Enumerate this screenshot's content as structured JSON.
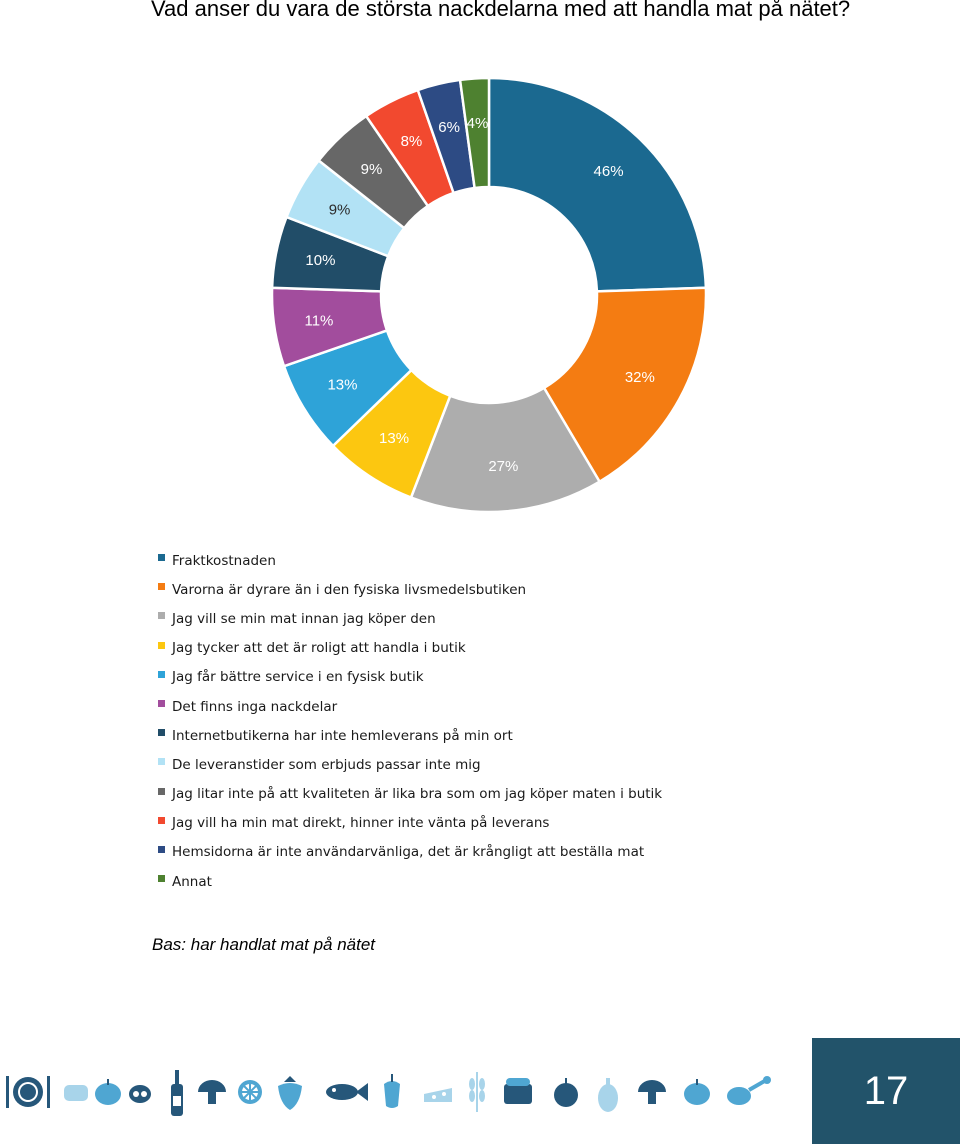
{
  "page": {
    "title": "Vad anser du vara de största nackdelarna med att handla mat på nätet?",
    "base_note": "Bas: har handlat mat på nätet",
    "page_number": "17"
  },
  "chart_data": {
    "type": "pie",
    "variant": "donut",
    "title": "Vad anser du vara de största nackdelarna med att handla mat på nätet?",
    "value_unit": "%",
    "legend_position": "bottom",
    "categories": [
      "Fraktkostnaden",
      "Varorna är dyrare än i den fysiska livsmedelsbutiken",
      "Jag vill se min mat innan jag köper den",
      "Jag tycker att det är roligt att handla i butik",
      "Jag får bättre service i en fysisk butik",
      "Det finns inga nackdelar",
      "Internetbutikerna har inte hemleverans på min ort",
      "De leveranstider som erbjuds passar inte mig",
      "Jag litar inte på att kvaliteten är lika bra som om jag köper maten i butik",
      "Jag vill ha min mat direkt, hinner inte vänta på leverans",
      "Hemsidorna är inte användarvänliga, det är krångligt att beställa mat",
      "Annat"
    ],
    "values": [
      46,
      32,
      27,
      13,
      13,
      11,
      10,
      9,
      9,
      8,
      6,
      4
    ],
    "data_labels": [
      "46%",
      "32%",
      "27%",
      "13%",
      "13%",
      "11%",
      "10%",
      "9%",
      "9%",
      "8%",
      "6%",
      "4%"
    ],
    "colors": [
      "#1b6990",
      "#f47c12",
      "#adadad",
      "#fcc710",
      "#2ea3d8",
      "#a24d9d",
      "#214d68",
      "#b2e2f5",
      "#676767",
      "#f2492f",
      "#2d4b84",
      "#4e8130"
    ]
  },
  "footer": {
    "icons": [
      "fork-knife-plate-icon",
      "bread-icon",
      "tomato-icon",
      "bell-pepper-icon",
      "wine-bottle-icon",
      "mushroom-icon",
      "citrus-slice-icon",
      "strawberry-icon",
      "fish-icon",
      "pepper-icon",
      "cheese-icon",
      "wheat-icon",
      "bread-loaf-icon",
      "apple-icon",
      "eggplant-icon",
      "mushroom-icon",
      "tomato-icon",
      "ham-icon"
    ]
  }
}
